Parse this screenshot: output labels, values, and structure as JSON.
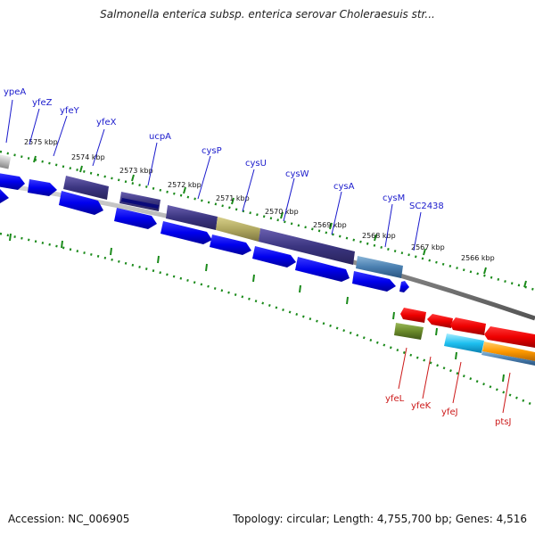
{
  "title": "Salmonella enterica subsp. enterica serovar Choleraesuis str...",
  "footer": {
    "accession": "Accession: NC_006905",
    "summary": "Topology: circular; Length: 4,755,700 bp; Genes: 4,516"
  },
  "kbp_markers": [
    {
      "label": "2575 kbp"
    },
    {
      "label": "2574 kbp"
    },
    {
      "label": "2573 kbp"
    },
    {
      "label": "2572 kbp"
    },
    {
      "label": "2571 kbp"
    },
    {
      "label": "2570 kbp"
    },
    {
      "label": "2569 kbp"
    },
    {
      "label": "2568 kbp"
    },
    {
      "label": "2567 kbp"
    },
    {
      "label": "2566 kbp"
    }
  ],
  "forward_genes": [
    "ypeA",
    "yfeZ",
    "yfeY",
    "yfeX",
    "ucpA",
    "cysP",
    "cysU",
    "cysW",
    "cysA",
    "cysM",
    "SC2438"
  ],
  "reverse_genes": [
    "yfeL",
    "yfeK",
    "yfeJ",
    "ptsJ"
  ],
  "colors": {
    "forward_cds": "#1111ee",
    "reverse_cds": "#ee1111",
    "tick": "#1a8a1a",
    "backbone": "#888888"
  }
}
